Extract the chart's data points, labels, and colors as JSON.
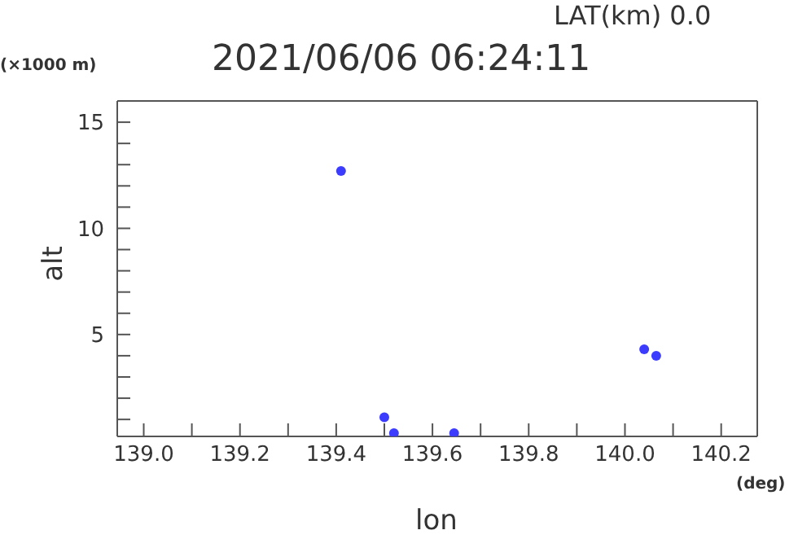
{
  "chart_data": {
    "type": "scatter",
    "title": "2021/06/06 06:24:11",
    "xlabel": "lon",
    "ylabel": "alt",
    "annotations": [
      "LAT(km) 0.0",
      "(×1000 m)",
      "(deg)"
    ],
    "x": [
      139.41,
      139.5,
      139.52,
      139.645,
      140.04,
      140.065
    ],
    "series": [
      {
        "color": "#3c3cff",
        "values": [
          12.7,
          1.1,
          0.35,
          0.35,
          4.3,
          4.0
        ]
      }
    ],
    "xlim": [
      138.945,
      140.275
    ],
    "xticks": [
      {
        "value": 139.0,
        "label": "139.0"
      },
      {
        "value": 139.1,
        "label": null
      },
      139.2,
      {
        "value": 139.3,
        "label": null
      },
      139.4,
      {
        "value": 139.5,
        "label": null
      },
      139.6,
      {
        "value": 139.7,
        "label": null
      },
      139.8,
      {
        "value": 139.9,
        "label": null
      },
      {
        "value": 140.0,
        "label": "140.0"
      },
      {
        "value": 140.1,
        "label": null
      },
      140.2
    ],
    "ylim": [
      0.2,
      16
    ],
    "yticks": [
      {
        "value": 1,
        "label": null
      },
      {
        "value": 2,
        "label": null
      },
      {
        "value": 3,
        "label": null
      },
      {
        "value": 4,
        "label": null
      },
      5,
      {
        "value": 6,
        "label": null
      },
      {
        "value": 7,
        "label": null
      },
      {
        "value": 8,
        "label": null
      },
      {
        "value": 9,
        "label": null
      },
      10,
      {
        "value": 11,
        "label": null
      },
      {
        "value": 12,
        "label": null
      },
      {
        "value": 13,
        "label": null
      },
      {
        "value": 14,
        "label": null
      },
      15
    ],
    "marker": "circle"
  }
}
